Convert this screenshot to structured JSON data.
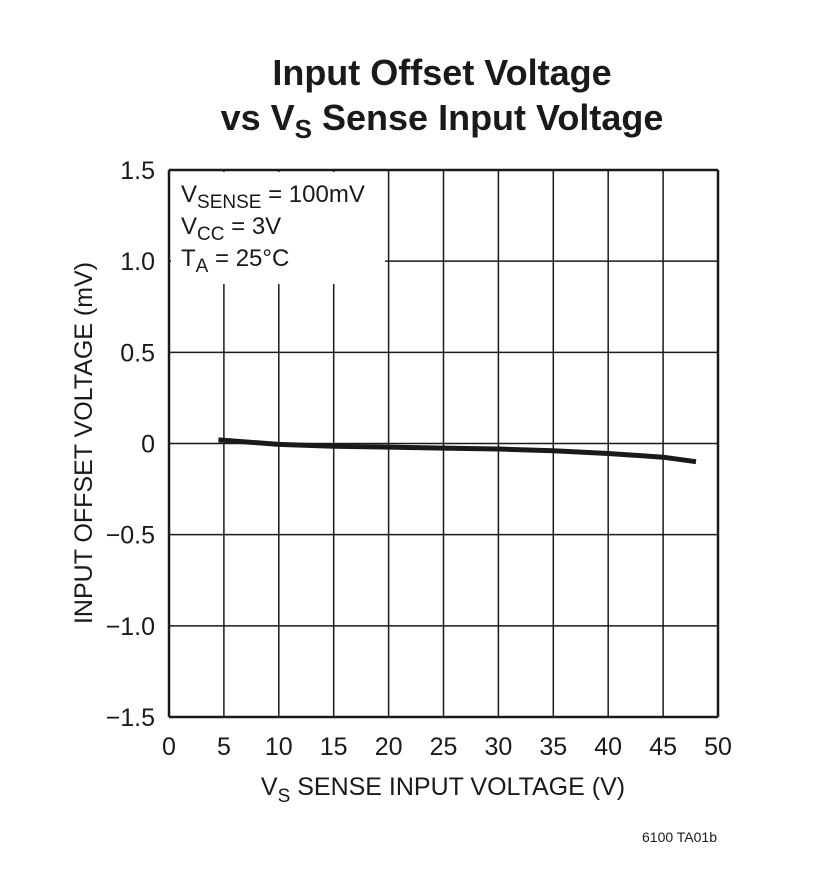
{
  "chart_data": {
    "type": "line",
    "title_line1": "Input Offset Voltage",
    "title_line2_prefix": "vs V",
    "title_line2_sub": "S",
    "title_line2_suffix": " Sense Input Voltage",
    "xlabel_prefix": "V",
    "xlabel_sub": "S",
    "xlabel_suffix": " SENSE INPUT VOLTAGE (V)",
    "ylabel": "INPUT OFFSET VOLTAGE (mV)",
    "xlim": [
      0,
      50
    ],
    "ylim": [
      -1.5,
      1.5
    ],
    "xticks": [
      "0",
      "5",
      "10",
      "15",
      "20",
      "25",
      "30",
      "35",
      "40",
      "45",
      "50"
    ],
    "yticks": [
      "1.5",
      "1.0",
      "0.5",
      "0",
      "−0.5",
      "−1.0",
      "−1.5"
    ],
    "grid": true,
    "conditions": [
      {
        "main": "V",
        "sub": "SENSE",
        "rest": " = 100mV"
      },
      {
        "main": "V",
        "sub": "CC",
        "rest": " = 3V"
      },
      {
        "main": "T",
        "sub": "A",
        "rest": " = 25°C"
      }
    ],
    "series": [
      {
        "x": [
          4.5,
          10,
          15,
          20,
          25,
          30,
          35,
          40,
          45,
          48
        ],
        "y": [
          0.02,
          -0.005,
          -0.015,
          -0.02,
          -0.025,
          -0.03,
          -0.04,
          -0.055,
          -0.075,
          -0.1
        ],
        "color": "#1a1a1a"
      }
    ],
    "footnote": "6100 TA01b"
  }
}
